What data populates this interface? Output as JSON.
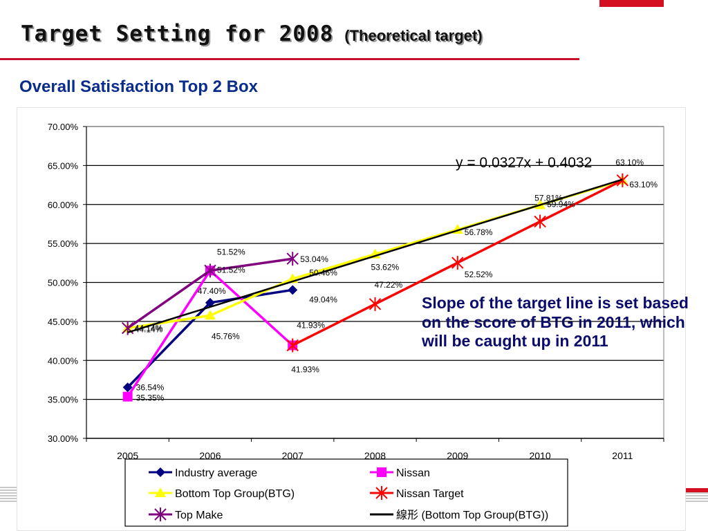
{
  "slide": {
    "title_main": "Target Setting for 2008",
    "title_sub": "(Theoretical target)",
    "subtitle": "Overall Satisfaction Top 2 Box",
    "note": "Slope of the target line is set based on the score of BTG in 2011, which will be caught up in 2011"
  },
  "colors": {
    "accent_red": "#d40f22",
    "title_rule": "#c8102e",
    "text_blue": "#0a2d8c"
  },
  "chart_data": {
    "type": "line",
    "categories": [
      "2005",
      "2006",
      "2007",
      "2008",
      "2009",
      "2010",
      "2011"
    ],
    "ylim": [
      0.3,
      0.7
    ],
    "yticks": [
      "70.00%",
      "65.00%",
      "60.00%",
      "55.00%",
      "50.00%",
      "45.00%",
      "40.00%",
      "35.00%",
      "30.00%"
    ],
    "grid": true,
    "legend_position": "bottom",
    "trendline_equation": "y = 0.0327x + 0.4032",
    "series": [
      {
        "name": "Industry average",
        "color": "#000080",
        "marker": "diamond",
        "values": [
          0.3654,
          0.474,
          0.4904,
          null,
          null,
          null,
          null
        ],
        "labels": [
          "36.54%",
          "47.40%",
          "49.04%",
          "",
          "",
          "",
          ""
        ]
      },
      {
        "name": "Nissan",
        "color": "#ff00ff",
        "marker": "square",
        "values": [
          0.3535,
          0.5152,
          0.4193,
          null,
          null,
          null,
          null
        ],
        "labels": [
          "35.35%",
          "51.52%",
          "41.93%",
          "",
          "",
          "",
          ""
        ]
      },
      {
        "name": "Bottom Top Group(BTG)",
        "color": "#ffff00",
        "marker": "triangle",
        "values": [
          0.4414,
          0.4576,
          0.5046,
          0.5362,
          0.5678,
          0.5994,
          0.631
        ],
        "labels": [
          "44.14%",
          "45.76%",
          "50.46%",
          "53.62%",
          "56.78%",
          "59.94%",
          "63.10%"
        ]
      },
      {
        "name": "Nissan Target",
        "color": "#ff0000",
        "marker": "star",
        "values": [
          null,
          null,
          0.4193,
          0.4722,
          0.5252,
          0.5781,
          0.631
        ],
        "labels": [
          "",
          "",
          "41.93%",
          "47.22%",
          "52.52%",
          "57.81%",
          "63.10%"
        ]
      },
      {
        "name": "Top Make",
        "color": "#800080",
        "marker": "star",
        "values": [
          0.4414,
          0.5152,
          0.5304,
          null,
          null,
          null,
          null
        ],
        "labels": [
          "44.14%",
          "51.52%",
          "53.04%",
          "",
          "",
          "",
          ""
        ]
      },
      {
        "name": "線形 (Bottom Top Group(BTG))",
        "color": "#000000",
        "marker": "none",
        "trendline": true,
        "values": [
          0.4359,
          0.4686,
          0.5013,
          0.534,
          0.5667,
          0.5994,
          0.6321
        ]
      }
    ]
  }
}
